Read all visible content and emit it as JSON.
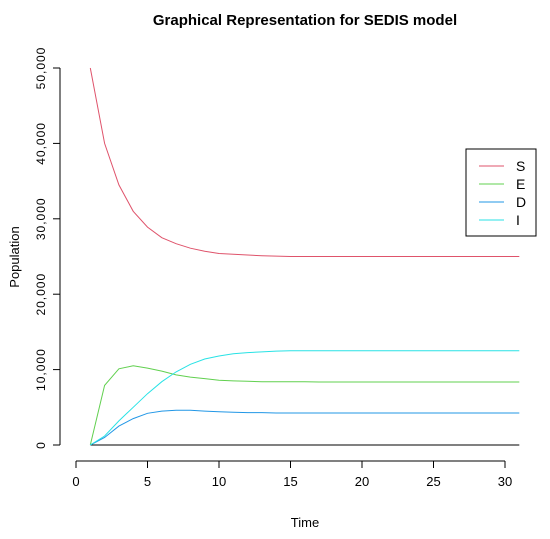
{
  "chart_data": {
    "type": "line",
    "title": "Graphical Representation for SEDIS model",
    "xlabel": "Time",
    "ylabel": "Population",
    "xlim": [
      1,
      31
    ],
    "ylim": [
      0,
      50000
    ],
    "x_ticks": [
      0,
      5,
      10,
      15,
      20,
      25,
      30
    ],
    "y_ticks": [
      0,
      10000,
      20000,
      30000,
      40000,
      50000
    ],
    "y_tick_labels": [
      "0",
      "10,000",
      "20,000",
      "30,000",
      "40,000",
      "50,000"
    ],
    "legend_position": "right",
    "x": [
      1,
      2,
      3,
      4,
      5,
      6,
      7,
      8,
      9,
      10,
      11,
      12,
      13,
      14,
      15,
      16,
      17,
      18,
      19,
      20,
      21,
      22,
      23,
      24,
      25,
      26,
      27,
      28,
      29,
      30,
      31
    ],
    "series": [
      {
        "name": "S",
        "color": "#df536b",
        "values": [
          50000,
          40000,
          34500,
          31000,
          28900,
          27500,
          26700,
          26100,
          25700,
          25400,
          25300,
          25200,
          25100,
          25050,
          25000,
          25000,
          25000,
          25000,
          25000,
          25000,
          25000,
          25000,
          25000,
          25000,
          25000,
          25000,
          25000,
          25000,
          25000,
          25000,
          25000
        ]
      },
      {
        "name": "E",
        "color": "#61d04f",
        "values": [
          0,
          7900,
          10100,
          10500,
          10200,
          9800,
          9300,
          9000,
          8800,
          8600,
          8500,
          8450,
          8400,
          8400,
          8400,
          8400,
          8350,
          8350,
          8350,
          8350,
          8350,
          8350,
          8350,
          8350,
          8350,
          8350,
          8350,
          8350,
          8350,
          8350,
          8350
        ]
      },
      {
        "name": "D",
        "color": "#2297e6",
        "values": [
          0,
          1000,
          2500,
          3500,
          4200,
          4500,
          4600,
          4600,
          4500,
          4400,
          4350,
          4300,
          4300,
          4250,
          4250,
          4250,
          4250,
          4250,
          4250,
          4250,
          4250,
          4250,
          4250,
          4250,
          4250,
          4250,
          4250,
          4250,
          4250,
          4250,
          4250
        ]
      },
      {
        "name": "I",
        "color": "#28e2e5",
        "values": [
          0,
          1200,
          3200,
          5000,
          6800,
          8400,
          9700,
          10700,
          11400,
          11800,
          12100,
          12250,
          12350,
          12450,
          12500,
          12500,
          12500,
          12500,
          12500,
          12500,
          12500,
          12500,
          12500,
          12500,
          12500,
          12500,
          12500,
          12500,
          12500,
          12500,
          12500
        ]
      }
    ]
  }
}
